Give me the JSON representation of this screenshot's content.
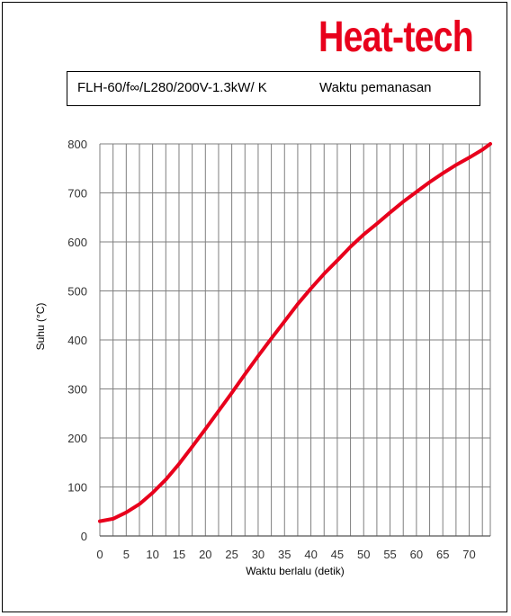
{
  "brand": "Heat-tech",
  "header": {
    "model": "FLH-60/f∞/L280/200V-1.3kW/ K",
    "description": "Waktu pemanasan"
  },
  "colors": {
    "brand": "#e8001c",
    "line": "#e8001c",
    "grid": "#7f7f7f"
  },
  "chart_data": {
    "type": "line",
    "title": "",
    "xlabel": "Waktu berlalu (detik)",
    "ylabel": "Suhu (°C)",
    "xlim": [
      0,
      74
    ],
    "ylim": [
      0,
      800
    ],
    "xticks": [
      0,
      5,
      10,
      15,
      20,
      25,
      30,
      35,
      40,
      45,
      50,
      55,
      60,
      65,
      70
    ],
    "yticks": [
      0,
      100,
      200,
      300,
      400,
      500,
      600,
      700,
      800
    ],
    "grid": true,
    "legend": "none",
    "series": [
      {
        "x": [
          0,
          2.5,
          5,
          7.5,
          10,
          12.5,
          15,
          17.5,
          20,
          22.5,
          25,
          27.5,
          30,
          32.5,
          35,
          37.5,
          40,
          42.5,
          45,
          47.5,
          50,
          52.5,
          55,
          57.5,
          60,
          62.5,
          65,
          67.5,
          70,
          72.5,
          74
        ],
        "y": [
          30,
          35,
          48,
          65,
          88,
          115,
          147,
          182,
          218,
          255,
          292,
          330,
          367,
          403,
          438,
          473,
          505,
          535,
          562,
          590,
          615,
          637,
          660,
          682,
          702,
          722,
          740,
          757,
          772,
          788,
          800
        ]
      }
    ]
  }
}
